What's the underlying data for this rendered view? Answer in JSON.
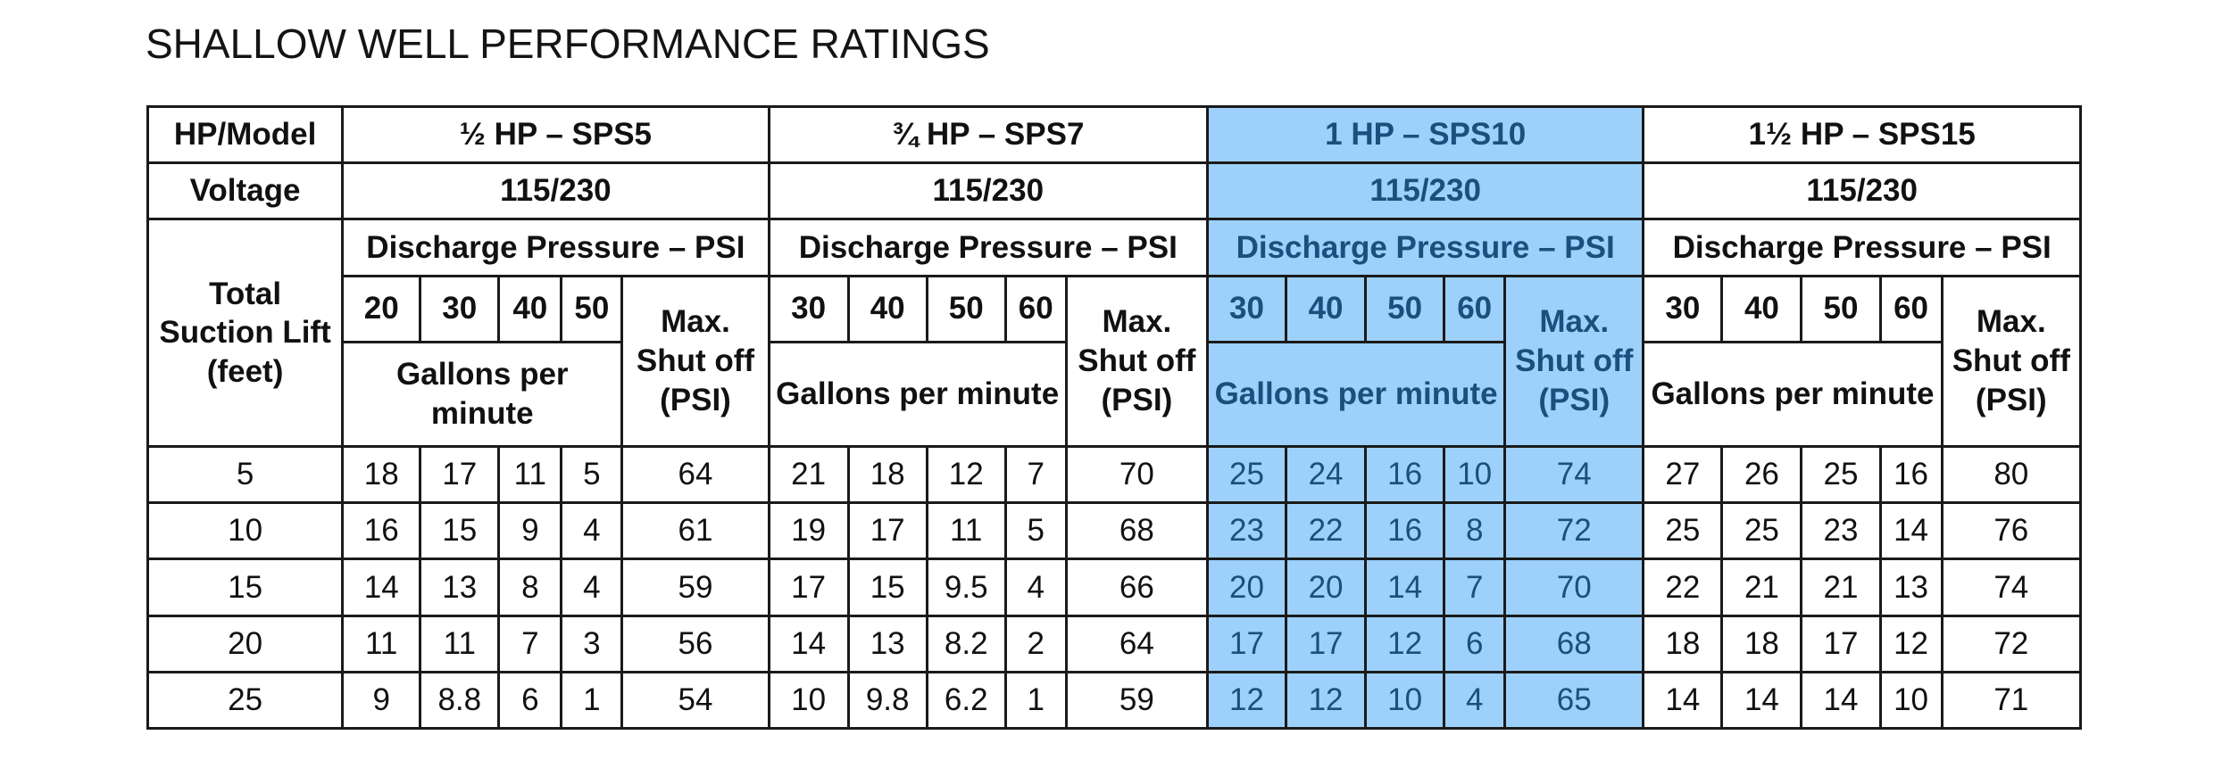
{
  "title": "SHALLOW WELL PERFORMANCE RATINGS",
  "labels": {
    "hp_model": "HP/Model",
    "voltage": "Voltage",
    "suction_lift": "Total Suction Lift (feet)"
  },
  "models": [
    {
      "name": "½ HP – SPS5",
      "voltage": "115/230",
      "pressure_header": "Discharge Pressure – PSI",
      "psi": [
        "20",
        "30",
        "40",
        "50"
      ],
      "max_label": "Max. Shut off (PSI)",
      "gpm_label": "Gallons per minute",
      "highlighted": false
    },
    {
      "name": "¾ HP – SPS7",
      "voltage": "115/230",
      "pressure_header": "Discharge Pressure – PSI",
      "psi": [
        "30",
        "40",
        "50",
        "60"
      ],
      "max_label": "Max. Shut off (PSI)",
      "gpm_label": "Gallons per minute",
      "highlighted": false
    },
    {
      "name": "1 HP – SPS10",
      "voltage": "115/230",
      "pressure_header": "Discharge Pressure – PSI",
      "psi": [
        "30",
        "40",
        "50",
        "60"
      ],
      "max_label": "Max. Shut off (PSI)",
      "gpm_label": "Gallons per minute",
      "highlighted": true
    },
    {
      "name": "1½ HP – SPS15",
      "voltage": "115/230",
      "pressure_header": "Discharge Pressure – PSI",
      "psi": [
        "30",
        "40",
        "50",
        "60"
      ],
      "max_label": "Max. Shut off (PSI)",
      "gpm_label": "Gallons per minute",
      "highlighted": false
    }
  ],
  "rows": [
    {
      "lift": "5",
      "values": [
        [
          "18",
          "17",
          "11",
          "5",
          "64"
        ],
        [
          "21",
          "18",
          "12",
          "7",
          "70"
        ],
        [
          "25",
          "24",
          "16",
          "10",
          "74"
        ],
        [
          "27",
          "26",
          "25",
          "16",
          "80"
        ]
      ]
    },
    {
      "lift": "10",
      "values": [
        [
          "16",
          "15",
          "9",
          "4",
          "61"
        ],
        [
          "19",
          "17",
          "11",
          "5",
          "68"
        ],
        [
          "23",
          "22",
          "16",
          "8",
          "72"
        ],
        [
          "25",
          "25",
          "23",
          "14",
          "76"
        ]
      ]
    },
    {
      "lift": "15",
      "values": [
        [
          "14",
          "13",
          "8",
          "4",
          "59"
        ],
        [
          "17",
          "15",
          "9.5",
          "4",
          "66"
        ],
        [
          "20",
          "20",
          "14",
          "7",
          "70"
        ],
        [
          "22",
          "21",
          "21",
          "13",
          "74"
        ]
      ]
    },
    {
      "lift": "20",
      "values": [
        [
          "11",
          "11",
          "7",
          "3",
          "56"
        ],
        [
          "14",
          "13",
          "8.2",
          "2",
          "64"
        ],
        [
          "17",
          "17",
          "12",
          "6",
          "68"
        ],
        [
          "18",
          "18",
          "17",
          "12",
          "72"
        ]
      ]
    },
    {
      "lift": "25",
      "values": [
        [
          "9",
          "8.8",
          "6",
          "1",
          "54"
        ],
        [
          "10",
          "9.8",
          "6.2",
          "1",
          "59"
        ],
        [
          "12",
          "12",
          "10",
          "4",
          "65"
        ],
        [
          "14",
          "14",
          "14",
          "10",
          "71"
        ]
      ]
    }
  ],
  "colors": {
    "highlight_fill": "#9dd0fb",
    "highlight_text": "#19507c",
    "border": "#1a1a1a"
  }
}
